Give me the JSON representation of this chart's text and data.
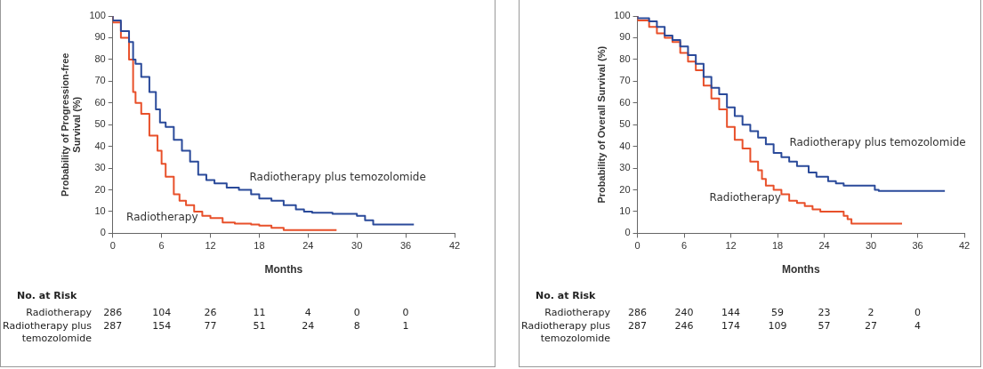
{
  "chart_data": [
    {
      "type": "step",
      "xlabel": "Months",
      "ylabel": "Probability of Progression-free Survival (%)",
      "xlim": [
        0,
        42
      ],
      "xticks": [
        0,
        6,
        12,
        18,
        24,
        30,
        36,
        42
      ],
      "ylim": [
        0,
        100
      ],
      "yticks": [
        0,
        10,
        20,
        30,
        40,
        50,
        60,
        70,
        80,
        90,
        100
      ],
      "grid": false,
      "legend": false,
      "marker": "none",
      "series": [
        {
          "name": "Radiotherapy plus temozolomide",
          "color": "#2a4a9a",
          "x": [
            0,
            1,
            2,
            2.5,
            2.8,
            3.5,
            4.5,
            5.3,
            5.8,
            6.5,
            7.5,
            8.5,
            9.5,
            10.5,
            11.5,
            12.5,
            14,
            15.5,
            17,
            18,
            19.5,
            21,
            22.5,
            23.5,
            24.5,
            27,
            30,
            31,
            32,
            32.3,
            37
          ],
          "values": [
            100,
            98,
            93,
            88,
            80,
            78,
            72,
            65,
            57,
            51,
            49,
            43,
            38,
            33,
            27,
            24.5,
            23,
            21,
            20,
            18,
            16,
            15,
            13,
            11,
            10,
            9.5,
            9,
            8,
            6,
            4,
            4
          ]
        },
        {
          "name": "Radiotherapy",
          "color": "#e8502a",
          "x": [
            0,
            1,
            2,
            2.5,
            2.8,
            3.5,
            4.5,
            5.5,
            6,
            6.5,
            7.5,
            8.2,
            9,
            10,
            11,
            12,
            13.5,
            15,
            17,
            18,
            19.5,
            21,
            22,
            27.5
          ],
          "values": [
            100,
            97,
            90,
            80,
            65,
            60,
            55,
            45,
            38,
            32,
            26,
            18,
            15,
            13,
            10,
            8,
            7,
            5,
            4.5,
            4,
            3.5,
            2.5,
            1.5,
            1.5
          ]
        }
      ],
      "annotations": [
        "No. at Risk",
        "Radiotherapy",
        "286",
        "104",
        "26",
        "11",
        "4",
        "0",
        "0",
        "Radiotherapy plus temozolomide",
        "287",
        "154",
        "77",
        "51",
        "24",
        "8",
        "1"
      ]
    },
    {
      "type": "step",
      "xlabel": "Months",
      "ylabel": "Probability of Overall Survival (%)",
      "xlim": [
        0,
        42
      ],
      "xticks": [
        0,
        6,
        12,
        18,
        24,
        30,
        36,
        42
      ],
      "ylim": [
        0,
        100
      ],
      "yticks": [
        0,
        10,
        20,
        30,
        40,
        50,
        60,
        70,
        80,
        90,
        100
      ],
      "grid": false,
      "legend": false,
      "marker": "none",
      "series": [
        {
          "name": "Radiotherapy plus temozolomide",
          "color": "#2a4a9a",
          "x": [
            0,
            1.5,
            2.5,
            3.5,
            4.5,
            5.5,
            6.5,
            7.5,
            8.5,
            9.5,
            10.5,
            11.5,
            12.5,
            13.5,
            14.5,
            15.5,
            16.5,
            17.5,
            18.5,
            19.5,
            20.5,
            22,
            23,
            24.5,
            25.5,
            26.5,
            27.5,
            30.5,
            31,
            31.5,
            39.5
          ],
          "values": [
            100,
            99,
            97.5,
            95,
            91,
            89,
            86,
            82,
            78,
            72,
            67,
            64,
            58,
            54,
            50,
            47,
            44,
            41,
            37,
            35,
            33,
            31,
            28,
            26,
            24,
            23,
            22,
            22,
            20,
            19.5,
            19.5
          ]
        },
        {
          "name": "Radiotherapy",
          "color": "#e8502a",
          "x": [
            0,
            1.5,
            2.5,
            3.5,
            4.5,
            5.5,
            6.5,
            7.5,
            8.5,
            9.5,
            10.5,
            11.5,
            12.5,
            13.5,
            14.5,
            15.5,
            16,
            16.5,
            17.5,
            18.5,
            19.5,
            20.5,
            21.5,
            22.5,
            23.5,
            24.5,
            26.5,
            27,
            27.5,
            28.5,
            34
          ],
          "values": [
            100,
            98,
            95,
            92,
            90,
            88,
            83,
            79,
            75,
            68,
            62,
            57,
            49,
            43,
            39,
            33,
            29,
            25,
            22,
            20,
            18,
            15,
            14,
            12.5,
            11,
            10,
            10,
            8,
            6.5,
            4.5,
            4.5
          ]
        }
      ],
      "annotations": [
        "No. at Risk",
        "Radiotherapy",
        "286",
        "240",
        "144",
        "59",
        "23",
        "2",
        "0",
        "Radiotherapy plus temozolomide",
        "287",
        "246",
        "174",
        "109",
        "57",
        "27",
        "4"
      ]
    }
  ]
}
